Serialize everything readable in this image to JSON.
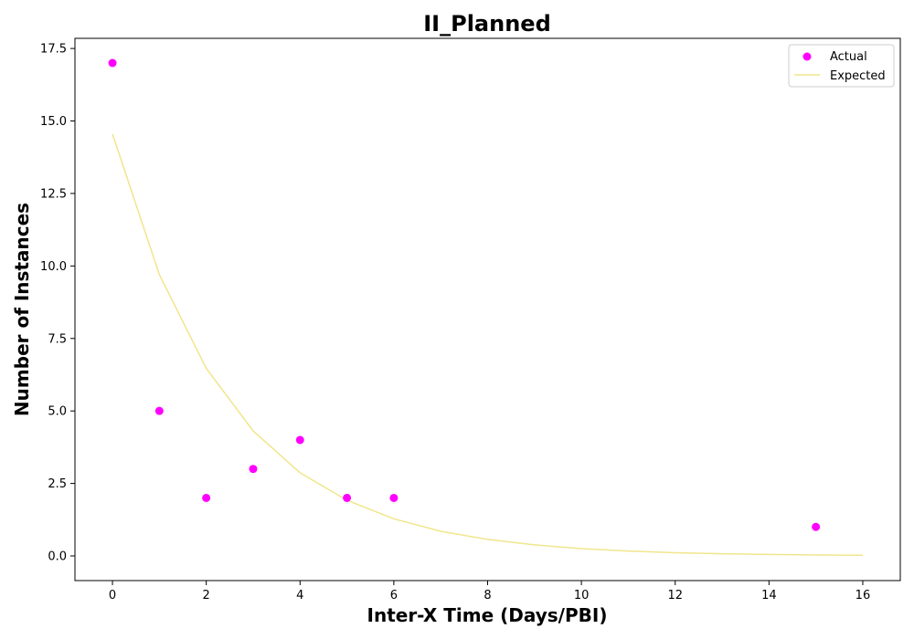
{
  "chart_data": {
    "type": "scatter",
    "title": "II_Planned",
    "xlabel": "Inter-X Time (Days/PBI)",
    "ylabel": "Number of Instances",
    "xlim": [
      -0.8,
      16.8
    ],
    "ylim": [
      -0.85,
      17.85
    ],
    "xticks": [
      0,
      2,
      4,
      6,
      8,
      10,
      12,
      14,
      16
    ],
    "xtick_labels": [
      "0",
      "2",
      "4",
      "6",
      "8",
      "10",
      "12",
      "14",
      "16"
    ],
    "yticks": [
      0,
      2.5,
      5,
      7.5,
      10,
      12.5,
      15,
      17.5
    ],
    "ytick_labels": [
      "0.0",
      "2.5",
      "5.0",
      "7.5",
      "10.0",
      "12.5",
      "15.0",
      "17.5"
    ],
    "grid": false,
    "legend_position": "top-right",
    "series": [
      {
        "name": "Actual",
        "kind": "scatter",
        "color": "#ff00ff",
        "x": [
          0,
          1,
          2,
          3,
          4,
          5,
          6,
          15
        ],
        "y": [
          17,
          5,
          2,
          3,
          4,
          2,
          2,
          1
        ]
      },
      {
        "name": "Expected",
        "kind": "line",
        "color": "#f0e68c",
        "x": [
          0,
          1,
          2,
          3,
          4,
          5,
          6,
          7,
          8,
          9,
          10,
          11,
          12,
          13,
          14,
          15,
          16
        ],
        "y": [
          14.55,
          9.7,
          6.47,
          4.31,
          2.87,
          1.92,
          1.28,
          0.85,
          0.57,
          0.38,
          0.25,
          0.17,
          0.11,
          0.075,
          0.05,
          0.033,
          0.022
        ]
      }
    ]
  }
}
